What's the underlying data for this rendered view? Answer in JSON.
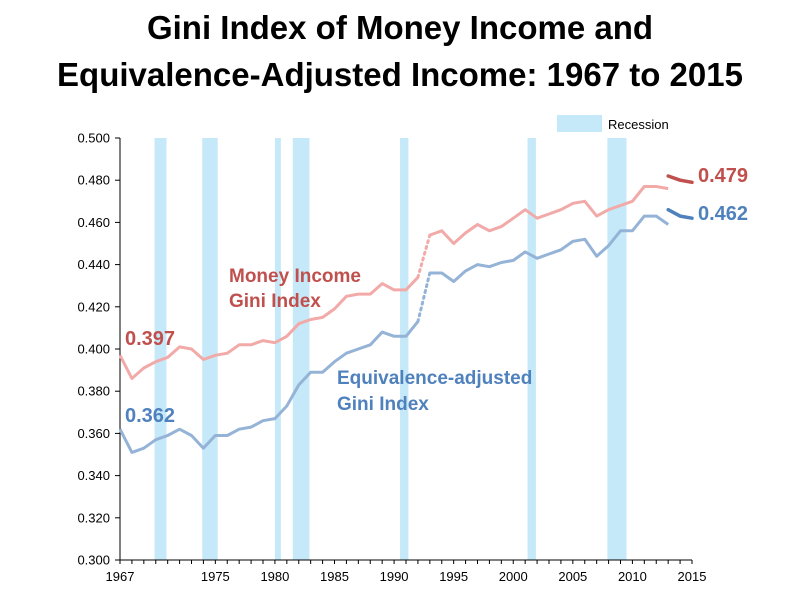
{
  "chart_data": {
    "type": "line",
    "title": [
      "Gini Index of Money Income and",
      "Equivalence-Adjusted Income: 1967 to 2015"
    ],
    "xlabel": "",
    "ylabel": "",
    "xlim": [
      1967,
      2015
    ],
    "ylim": [
      0.3,
      0.5
    ],
    "y_ticks": [
      "0.300",
      "0.320",
      "0.340",
      "0.360",
      "0.380",
      "0.400",
      "0.420",
      "0.440",
      "0.460",
      "0.480",
      "0.500"
    ],
    "x_ticks": [
      {
        "year": 1967,
        "label": "1967"
      },
      {
        "year": 1975,
        "label": "1975"
      },
      {
        "year": 1980,
        "label": "1980"
      },
      {
        "year": 1985,
        "label": "1985"
      },
      {
        "year": 1990,
        "label": "1990"
      },
      {
        "year": 1995,
        "label": "1995"
      },
      {
        "year": 2000,
        "label": "2000"
      },
      {
        "year": 2005,
        "label": "2005"
      },
      {
        "year": 2010,
        "label": "2010"
      },
      {
        "year": 2015,
        "label": "2015"
      }
    ],
    "legend": {
      "label": "Recession",
      "color": "#c5e9f8",
      "position": "top-right"
    },
    "recessions": [
      [
        1969.9,
        1970.9
      ],
      [
        1973.9,
        1975.2
      ],
      [
        1980.0,
        1980.5
      ],
      [
        1981.5,
        1982.9
      ],
      [
        1990.5,
        1991.2
      ],
      [
        2001.2,
        2001.9
      ],
      [
        2007.9,
        2009.5
      ]
    ],
    "series": [
      {
        "name": "Money Income Gini Index",
        "color": "#f2aaa9",
        "label_color": "#c0504d",
        "points": [
          [
            1967,
            0.397
          ],
          [
            1968,
            0.386
          ],
          [
            1969,
            0.391
          ],
          [
            1970,
            0.394
          ],
          [
            1971,
            0.396
          ],
          [
            1972,
            0.401
          ],
          [
            1973,
            0.4
          ],
          [
            1974,
            0.395
          ],
          [
            1975,
            0.397
          ],
          [
            1976,
            0.398
          ],
          [
            1977,
            0.402
          ],
          [
            1978,
            0.402
          ],
          [
            1979,
            0.404
          ],
          [
            1980,
            0.403
          ],
          [
            1981,
            0.406
          ],
          [
            1982,
            0.412
          ],
          [
            1983,
            0.414
          ],
          [
            1984,
            0.415
          ],
          [
            1985,
            0.419
          ],
          [
            1986,
            0.425
          ],
          [
            1987,
            0.426
          ],
          [
            1988,
            0.426
          ],
          [
            1989,
            0.431
          ],
          [
            1990,
            0.428
          ],
          [
            1991,
            0.428
          ],
          [
            1992,
            0.434
          ]
        ],
        "bridge": [
          [
            1992,
            0.434
          ],
          [
            1993,
            0.454
          ]
        ],
        "points_after": [
          [
            1993,
            0.454
          ],
          [
            1994,
            0.456
          ],
          [
            1995,
            0.45
          ],
          [
            1996,
            0.455
          ],
          [
            1997,
            0.459
          ],
          [
            1998,
            0.456
          ],
          [
            1999,
            0.458
          ],
          [
            2000,
            0.462
          ],
          [
            2001,
            0.466
          ],
          [
            2002,
            0.462
          ],
          [
            2003,
            0.464
          ],
          [
            2004,
            0.466
          ],
          [
            2005,
            0.469
          ],
          [
            2006,
            0.47
          ],
          [
            2007,
            0.463
          ],
          [
            2008,
            0.466
          ],
          [
            2009,
            0.468
          ],
          [
            2010,
            0.47
          ],
          [
            2011,
            0.477
          ],
          [
            2012,
            0.477
          ],
          [
            2013,
            0.476
          ]
        ],
        "recent": [
          [
            2013,
            0.482
          ],
          [
            2014,
            0.48
          ],
          [
            2015,
            0.479
          ]
        ],
        "recent_color": "#c0504d",
        "label": [
          "Money Income",
          "Gini Index"
        ],
        "start_value_label": "0.397",
        "end_value_label": "0.479"
      },
      {
        "name": "Equivalence-adjusted Gini Index",
        "color": "#95b3d7",
        "label_color": "#4f81bd",
        "points": [
          [
            1967,
            0.362
          ],
          [
            1968,
            0.351
          ],
          [
            1969,
            0.353
          ],
          [
            1970,
            0.357
          ],
          [
            1971,
            0.359
          ],
          [
            1972,
            0.362
          ],
          [
            1973,
            0.359
          ],
          [
            1974,
            0.353
          ],
          [
            1975,
            0.359
          ],
          [
            1976,
            0.359
          ],
          [
            1977,
            0.362
          ],
          [
            1978,
            0.363
          ],
          [
            1979,
            0.366
          ],
          [
            1980,
            0.367
          ],
          [
            1981,
            0.373
          ],
          [
            1982,
            0.383
          ],
          [
            1983,
            0.389
          ],
          [
            1984,
            0.389
          ],
          [
            1985,
            0.394
          ],
          [
            1986,
            0.398
          ],
          [
            1987,
            0.4
          ],
          [
            1988,
            0.402
          ],
          [
            1989,
            0.408
          ],
          [
            1990,
            0.406
          ],
          [
            1991,
            0.406
          ],
          [
            1992,
            0.413
          ]
        ],
        "bridge": [
          [
            1992,
            0.413
          ],
          [
            1993,
            0.436
          ]
        ],
        "points_after": [
          [
            1993,
            0.436
          ],
          [
            1994,
            0.436
          ],
          [
            1995,
            0.432
          ],
          [
            1996,
            0.437
          ],
          [
            1997,
            0.44
          ],
          [
            1998,
            0.439
          ],
          [
            1999,
            0.441
          ],
          [
            2000,
            0.442
          ],
          [
            2001,
            0.446
          ],
          [
            2002,
            0.443
          ],
          [
            2003,
            0.445
          ],
          [
            2004,
            0.447
          ],
          [
            2005,
            0.451
          ],
          [
            2006,
            0.452
          ],
          [
            2007,
            0.444
          ],
          [
            2008,
            0.449
          ],
          [
            2009,
            0.456
          ],
          [
            2010,
            0.456
          ],
          [
            2011,
            0.463
          ],
          [
            2012,
            0.463
          ],
          [
            2013,
            0.459
          ]
        ],
        "recent": [
          [
            2013,
            0.466
          ],
          [
            2014,
            0.463
          ],
          [
            2015,
            0.462
          ]
        ],
        "recent_color": "#4f81bd",
        "label": [
          "Equivalence-adjusted",
          "Gini Index"
        ],
        "start_value_label": "0.362",
        "end_value_label": "0.462"
      }
    ]
  }
}
